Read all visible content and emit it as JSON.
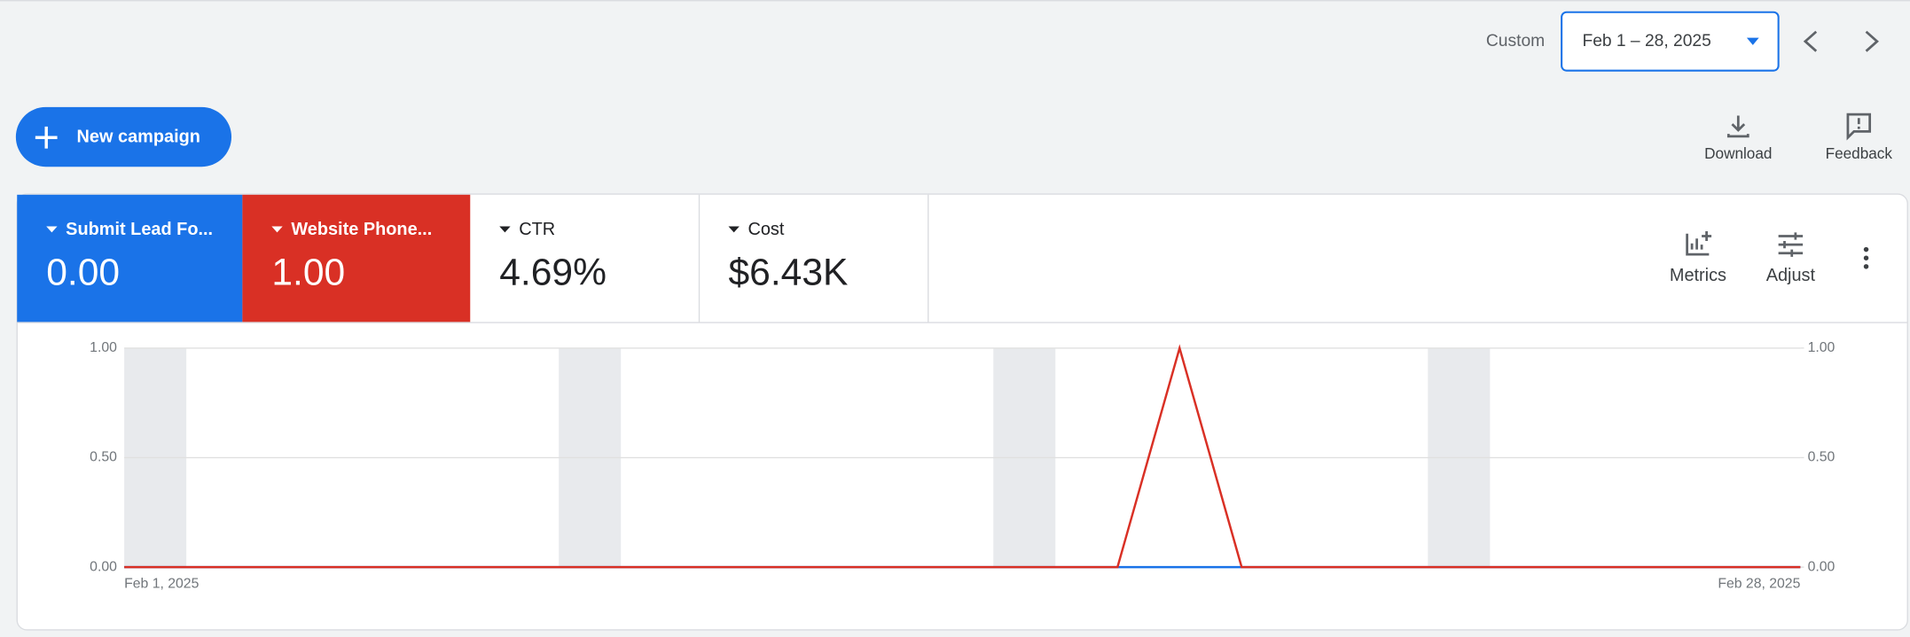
{
  "header": {
    "date_range_label": "Custom",
    "date_range": "Feb 1 – 28, 2025"
  },
  "toolbar": {
    "new_campaign": "New campaign",
    "download": "Download",
    "feedback": "Feedback"
  },
  "scorecards": [
    {
      "name": "Submit Lead Fo...",
      "value": "0.00",
      "color": "#1a73e8"
    },
    {
      "name": "Website Phone...",
      "value": "1.00",
      "color": "#d93025"
    },
    {
      "name": "CTR",
      "value": "4.69%"
    },
    {
      "name": "Cost",
      "value": "$6.43K"
    }
  ],
  "chart_actions": {
    "metrics": "Metrics",
    "adjust": "Adjust"
  },
  "chart_data": {
    "type": "line",
    "categories": [
      "Feb 1, 2025",
      null,
      null,
      null,
      null,
      null,
      null,
      null,
      null,
      null,
      null,
      null,
      null,
      null,
      null,
      null,
      null,
      null,
      null,
      null,
      null,
      null,
      null,
      null,
      null,
      null,
      null,
      "Feb 28, 2025"
    ],
    "series": [
      {
        "color": "#1a73e8",
        "values": [
          0,
          0,
          0,
          0,
          0,
          0,
          0,
          0,
          0,
          0,
          0,
          0,
          0,
          0,
          0,
          0,
          0,
          0,
          0,
          0,
          0,
          0,
          0,
          0,
          0,
          0,
          0,
          0
        ]
      },
      {
        "color": "#d93025",
        "axis": "y2",
        "values": [
          0,
          0,
          0,
          0,
          0,
          0,
          0,
          0,
          0,
          0,
          0,
          0,
          0,
          0,
          0,
          0,
          0,
          1,
          0,
          0,
          0,
          0,
          0,
          0,
          0,
          0,
          0,
          0
        ]
      }
    ],
    "ylim": [
      0,
      1
    ],
    "yticks": [
      {
        "value": 0,
        "label": "0.00"
      },
      {
        "value": 0.5,
        "label": "0.50"
      },
      {
        "value": 1,
        "label": "1.00"
      }
    ],
    "y2lim": [
      0,
      1
    ],
    "y2ticks": [
      {
        "value": 0,
        "label": "0.00"
      },
      {
        "value": 0.5,
        "label": "0.50"
      },
      {
        "value": 1,
        "label": "1.00"
      }
    ],
    "grid": true
  }
}
